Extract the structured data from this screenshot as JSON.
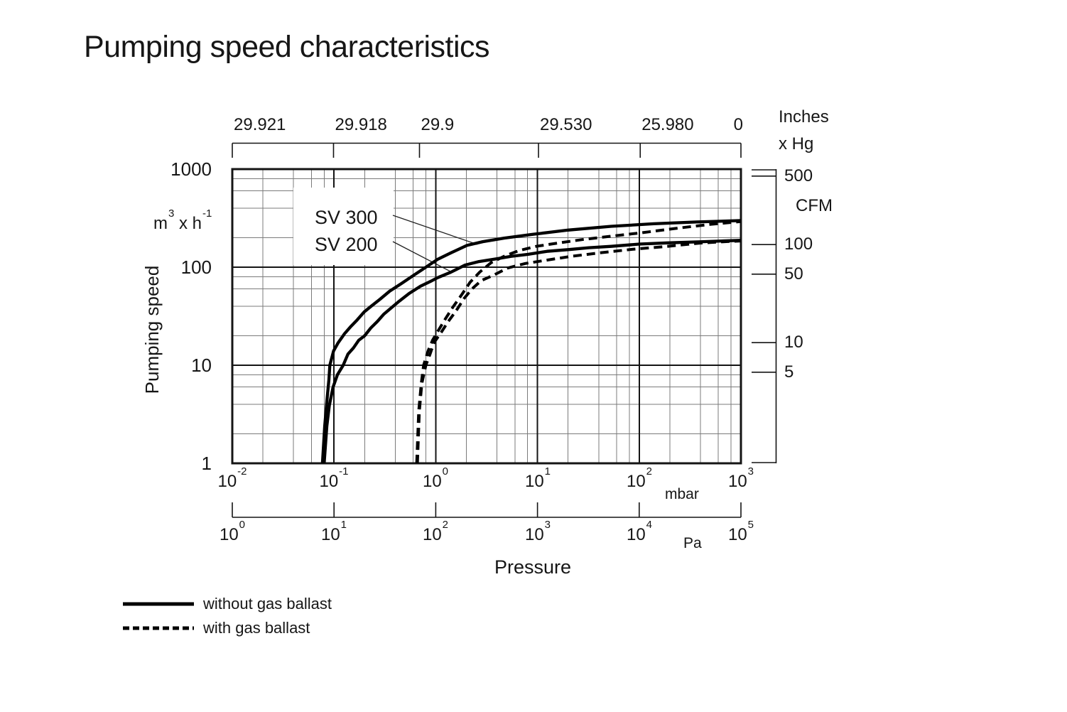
{
  "title": "Pumping speed characteristics",
  "colors": {
    "curve": "#000000",
    "major_grid": "#141414",
    "minor_grid": "#7b7b7b",
    "text": "#161616"
  },
  "chart_data": {
    "type": "line",
    "title": "Pumping speed characteristics",
    "x_label": "Pressure",
    "grid": "log-log, minor lines at 2,4,6,8 per decade",
    "x_axis_mbar": {
      "unit": "mbar",
      "range": [
        0.01,
        1000
      ],
      "ticks": [
        {
          "base": "10",
          "exp": "-2"
        },
        {
          "base": "10",
          "exp": "-1"
        },
        {
          "base": "10",
          "exp": "0"
        },
        {
          "base": "10",
          "exp": "1"
        },
        {
          "base": "10",
          "exp": "2"
        },
        {
          "base": "10",
          "exp": "3"
        }
      ]
    },
    "x_axis_pa": {
      "unit": "Pa",
      "range": [
        1,
        100000
      ],
      "ticks": [
        {
          "base": "10",
          "exp": "0"
        },
        {
          "base": "10",
          "exp": "1"
        },
        {
          "base": "10",
          "exp": "2"
        },
        {
          "base": "10",
          "exp": "3"
        },
        {
          "base": "10",
          "exp": "4"
        },
        {
          "base": "10",
          "exp": "5"
        }
      ]
    },
    "y_axis": {
      "label": "Pumping speed",
      "unit": {
        "base": "m",
        "base_exp": "3",
        "mid": " x h",
        "mid_exp": "-1"
      },
      "range": [
        1,
        1000
      ],
      "ticks": [
        "1000",
        "100",
        "10",
        "1"
      ]
    },
    "cfm_axis": {
      "label": "CFM",
      "ticks": [
        "500",
        "100",
        "50",
        "10",
        "5"
      ],
      "tick_values": [
        500,
        100,
        50,
        10,
        5
      ],
      "m3h_per_cfm": 1.699
    },
    "top_axis": {
      "unit_line1": "Inches",
      "unit_line2": "x Hg",
      "labels": [
        "29.921",
        "29.918",
        "29.9",
        "29.530",
        "25.980",
        "0"
      ],
      "fractions": [
        0,
        0.199,
        0.368,
        0.602,
        0.802,
        1
      ]
    },
    "annotations": [
      {
        "text": "SV 300"
      },
      {
        "text": "SV 200"
      }
    ],
    "legend": [
      {
        "style": "solid",
        "label": "without gas ballast"
      },
      {
        "style": "dashed",
        "label": "with gas ballast"
      }
    ],
    "series": [
      {
        "name": "SV 300",
        "gas_ballast": false,
        "style": "solid",
        "points": [
          [
            0.077,
            1
          ],
          [
            0.081,
            2.4
          ],
          [
            0.085,
            4.3
          ],
          [
            0.089,
            7.1
          ],
          [
            0.091,
            10
          ],
          [
            0.099,
            14
          ],
          [
            0.11,
            17
          ],
          [
            0.127,
            21
          ],
          [
            0.147,
            25
          ],
          [
            0.169,
            29
          ],
          [
            0.198,
            35
          ],
          [
            0.232,
            40
          ],
          [
            0.282,
            47
          ],
          [
            0.353,
            57
          ],
          [
            0.459,
            68
          ],
          [
            0.6,
            82
          ],
          [
            0.8,
            100
          ],
          [
            1.04,
            120
          ],
          [
            1.41,
            140
          ],
          [
            2.03,
            167
          ],
          [
            2.9,
            182
          ],
          [
            4.7,
            198
          ],
          [
            9,
            216
          ],
          [
            20,
            239
          ],
          [
            53,
            261
          ],
          [
            139,
            277
          ],
          [
            366,
            289
          ],
          [
            1000,
            299
          ]
        ]
      },
      {
        "name": "SV 200",
        "gas_ballast": false,
        "style": "solid",
        "points": [
          [
            0.08,
            1
          ],
          [
            0.085,
            2.4
          ],
          [
            0.09,
            3.9
          ],
          [
            0.098,
            6
          ],
          [
            0.108,
            8
          ],
          [
            0.123,
            10
          ],
          [
            0.137,
            13
          ],
          [
            0.155,
            15
          ],
          [
            0.175,
            18
          ],
          [
            0.2,
            20
          ],
          [
            0.23,
            24
          ],
          [
            0.267,
            28
          ],
          [
            0.307,
            33
          ],
          [
            0.36,
            38
          ],
          [
            0.437,
            45
          ],
          [
            0.548,
            54
          ],
          [
            0.71,
            64
          ],
          [
            0.92,
            73
          ],
          [
            1.04,
            78
          ],
          [
            1.41,
            89
          ],
          [
            1.94,
            105
          ],
          [
            2.66,
            114
          ],
          [
            4,
            122
          ],
          [
            5.5,
            129
          ],
          [
            8,
            135
          ],
          [
            12.4,
            145
          ],
          [
            20,
            151
          ],
          [
            32,
            158
          ],
          [
            53,
            163
          ],
          [
            100,
            172
          ],
          [
            190,
            177
          ],
          [
            425,
            182
          ],
          [
            1000,
            188
          ]
        ]
      },
      {
        "name": "SV 300",
        "gas_ballast": true,
        "style": "dashed",
        "points": [
          [
            0.65,
            1
          ],
          [
            0.68,
            3.4
          ],
          [
            0.72,
            6.5
          ],
          [
            0.76,
            10
          ],
          [
            0.84,
            14
          ],
          [
            0.93,
            18
          ],
          [
            1.07,
            23
          ],
          [
            1.25,
            30
          ],
          [
            1.47,
            39
          ],
          [
            1.79,
            52
          ],
          [
            2.17,
            70
          ],
          [
            2.7,
            89
          ],
          [
            3.5,
            111
          ],
          [
            4.7,
            129
          ],
          [
            6.5,
            147
          ],
          [
            9.7,
            163
          ],
          [
            15.8,
            176
          ],
          [
            27.5,
            191
          ],
          [
            53,
            207
          ],
          [
            108,
            225
          ],
          [
            223,
            248
          ],
          [
            497,
            273
          ],
          [
            1000,
            292
          ]
        ]
      },
      {
        "name": "SV 200",
        "gas_ballast": true,
        "style": "dashed",
        "points": [
          [
            0.66,
            1
          ],
          [
            0.69,
            3.4
          ],
          [
            0.73,
            6.5
          ],
          [
            0.8,
            10
          ],
          [
            0.88,
            13
          ],
          [
            0.96,
            17
          ],
          [
            1.11,
            21
          ],
          [
            1.33,
            28
          ],
          [
            1.59,
            36
          ],
          [
            1.9,
            48
          ],
          [
            2.27,
            60
          ],
          [
            2.8,
            73
          ],
          [
            3.7,
            83
          ],
          [
            5.1,
            98
          ],
          [
            7.6,
            109
          ],
          [
            12.3,
            118
          ],
          [
            21.6,
            129
          ],
          [
            41,
            140
          ],
          [
            85,
            152
          ],
          [
            177,
            162
          ],
          [
            395,
            176
          ],
          [
            692,
            182
          ],
          [
            1000,
            185
          ]
        ]
      }
    ]
  }
}
